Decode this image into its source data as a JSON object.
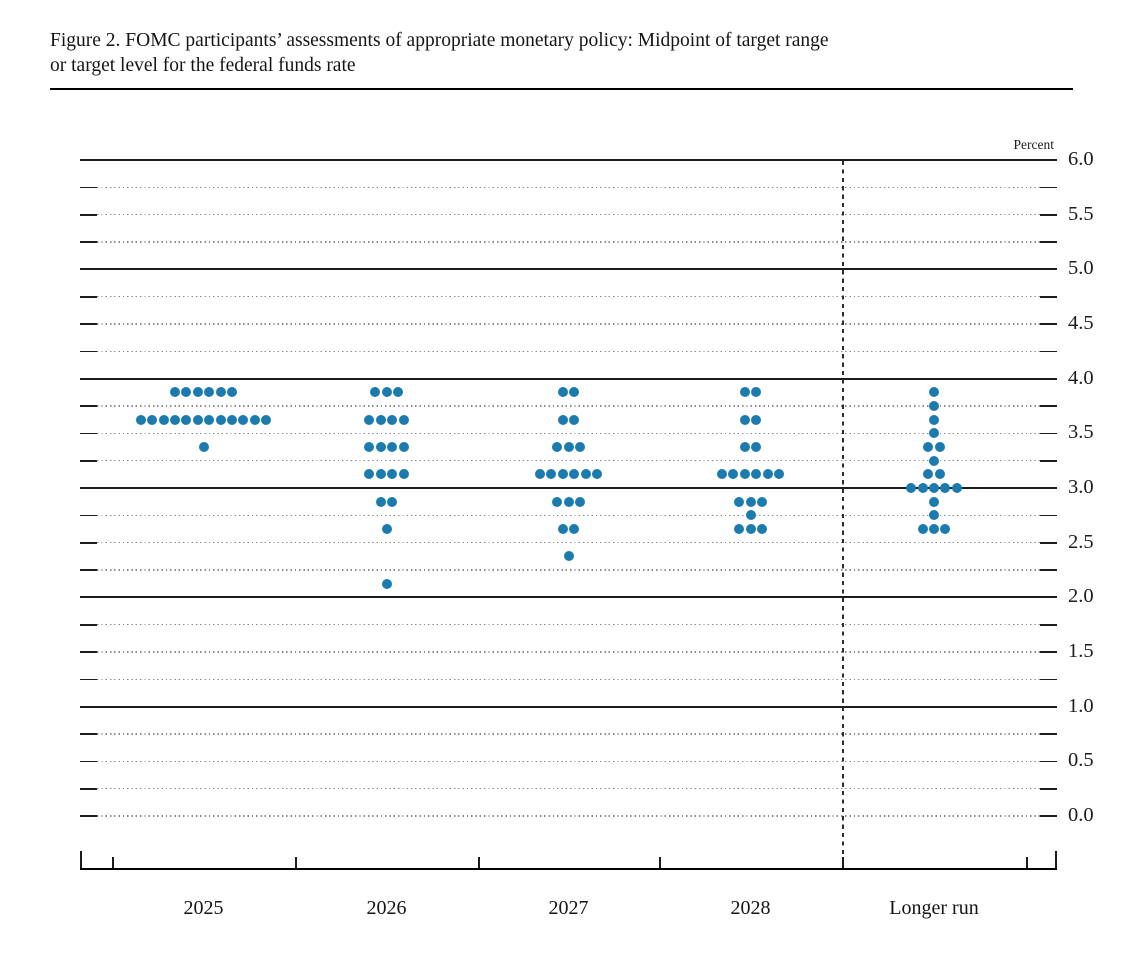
{
  "figure": {
    "title_line1": "Figure 2. FOMC participants’ assessments of appropriate monetary policy: Midpoint of target range",
    "title_line2": "or target level for the federal funds rate",
    "unit_label": "Percent"
  },
  "chart_data": {
    "type": "scatter",
    "title": "FOMC participants’ assessments of appropriate monetary policy: Midpoint of target range or target level for the federal funds rate",
    "ylabel": "Percent",
    "ylim": [
      0.0,
      6.0
    ],
    "y_grid_step": 0.25,
    "y_label_step": 0.5,
    "y_axis_labels": [
      "6.0",
      "5.5",
      "5.0",
      "4.5",
      "4.0",
      "3.5",
      "3.0",
      "2.5",
      "2.0",
      "1.5",
      "1.0",
      "0.5",
      "0.0"
    ],
    "solid_grid_levels": [
      6.0,
      5.0,
      4.0,
      3.0,
      2.0,
      1.0
    ],
    "grid_on": true,
    "legend": "none",
    "dot_color": "#1b7bae",
    "categories": [
      "2025",
      "2026",
      "2027",
      "2028",
      "Longer run"
    ],
    "separator_before_category": "Longer run",
    "series": [
      {
        "name": "2025",
        "dots": [
          {
            "value": 3.875,
            "count": 6
          },
          {
            "value": 3.625,
            "count": 12
          },
          {
            "value": 3.375,
            "count": 1
          }
        ]
      },
      {
        "name": "2026",
        "dots": [
          {
            "value": 3.875,
            "count": 3
          },
          {
            "value": 3.625,
            "count": 4
          },
          {
            "value": 3.375,
            "count": 4
          },
          {
            "value": 3.125,
            "count": 4
          },
          {
            "value": 2.875,
            "count": 2
          },
          {
            "value": 2.625,
            "count": 1
          },
          {
            "value": 2.125,
            "count": 1
          }
        ]
      },
      {
        "name": "2027",
        "dots": [
          {
            "value": 3.875,
            "count": 2
          },
          {
            "value": 3.625,
            "count": 2
          },
          {
            "value": 3.375,
            "count": 3
          },
          {
            "value": 3.125,
            "count": 6
          },
          {
            "value": 2.875,
            "count": 3
          },
          {
            "value": 2.625,
            "count": 2
          },
          {
            "value": 2.375,
            "count": 1
          }
        ]
      },
      {
        "name": "2028",
        "dots": [
          {
            "value": 3.875,
            "count": 2
          },
          {
            "value": 3.625,
            "count": 2
          },
          {
            "value": 3.375,
            "count": 2
          },
          {
            "value": 3.125,
            "count": 6
          },
          {
            "value": 2.875,
            "count": 3
          },
          {
            "value": 2.75,
            "count": 1
          },
          {
            "value": 2.625,
            "count": 3
          }
        ]
      },
      {
        "name": "Longer run",
        "dots": [
          {
            "value": 3.875,
            "count": 1
          },
          {
            "value": 3.75,
            "count": 1
          },
          {
            "value": 3.625,
            "count": 1
          },
          {
            "value": 3.5,
            "count": 1
          },
          {
            "value": 3.375,
            "count": 2
          },
          {
            "value": 3.25,
            "count": 1
          },
          {
            "value": 3.125,
            "count": 2
          },
          {
            "value": 3.0,
            "count": 5
          },
          {
            "value": 2.875,
            "count": 1
          },
          {
            "value": 2.75,
            "count": 1
          },
          {
            "value": 2.625,
            "count": 3
          }
        ]
      }
    ]
  }
}
